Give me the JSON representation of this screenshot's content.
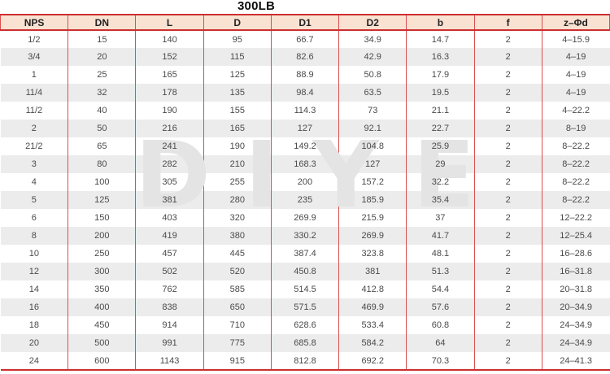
{
  "title": "300LB",
  "watermark": "DIYE",
  "colors": {
    "header_bg": "#f9e2d2",
    "border_major": "#cc2f2f",
    "border_minor": "#d94f4f",
    "stripe": "#ececec",
    "text": "#4a4a4a",
    "header_text": "#222222",
    "watermark": "#e4e4e4"
  },
  "table": {
    "columns": [
      "NPS",
      "DN",
      "L",
      "D",
      "D1",
      "D2",
      "b",
      "f",
      "z–Φd"
    ],
    "rows": [
      [
        "1/2",
        "15",
        "140",
        "95",
        "66.7",
        "34.9",
        "14.7",
        "2",
        "4–15.9"
      ],
      [
        "3/4",
        "20",
        "152",
        "115",
        "82.6",
        "42.9",
        "16.3",
        "2",
        "4–19"
      ],
      [
        "1",
        "25",
        "165",
        "125",
        "88.9",
        "50.8",
        "17.9",
        "2",
        "4–19"
      ],
      [
        "11/4",
        "32",
        "178",
        "135",
        "98.4",
        "63.5",
        "19.5",
        "2",
        "4–19"
      ],
      [
        "11/2",
        "40",
        "190",
        "155",
        "114.3",
        "73",
        "21.1",
        "2",
        "4–22.2"
      ],
      [
        "2",
        "50",
        "216",
        "165",
        "127",
        "92.1",
        "22.7",
        "2",
        "8–19"
      ],
      [
        "21/2",
        "65",
        "241",
        "190",
        "149.2",
        "104.8",
        "25.9",
        "2",
        "8–22.2"
      ],
      [
        "3",
        "80",
        "282",
        "210",
        "168.3",
        "127",
        "29",
        "2",
        "8–22.2"
      ],
      [
        "4",
        "100",
        "305",
        "255",
        "200",
        "157.2",
        "32.2",
        "2",
        "8–22.2"
      ],
      [
        "5",
        "125",
        "381",
        "280",
        "235",
        "185.9",
        "35.4",
        "2",
        "8–22.2"
      ],
      [
        "6",
        "150",
        "403",
        "320",
        "269.9",
        "215.9",
        "37",
        "2",
        "12–22.2"
      ],
      [
        "8",
        "200",
        "419",
        "380",
        "330.2",
        "269.9",
        "41.7",
        "2",
        "12–25.4"
      ],
      [
        "10",
        "250",
        "457",
        "445",
        "387.4",
        "323.8",
        "48.1",
        "2",
        "16–28.6"
      ],
      [
        "12",
        "300",
        "502",
        "520",
        "450.8",
        "381",
        "51.3",
        "2",
        "16–31.8"
      ],
      [
        "14",
        "350",
        "762",
        "585",
        "514.5",
        "412.8",
        "54.4",
        "2",
        "20–31.8"
      ],
      [
        "16",
        "400",
        "838",
        "650",
        "571.5",
        "469.9",
        "57.6",
        "2",
        "20–34.9"
      ],
      [
        "18",
        "450",
        "914",
        "710",
        "628.6",
        "533.4",
        "60.8",
        "2",
        "24–34.9"
      ],
      [
        "20",
        "500",
        "991",
        "775",
        "685.8",
        "584.2",
        "64",
        "2",
        "24–34.9"
      ],
      [
        "24",
        "600",
        "1143",
        "915",
        "812.8",
        "692.2",
        "70.3",
        "2",
        "24–41.3"
      ]
    ]
  }
}
